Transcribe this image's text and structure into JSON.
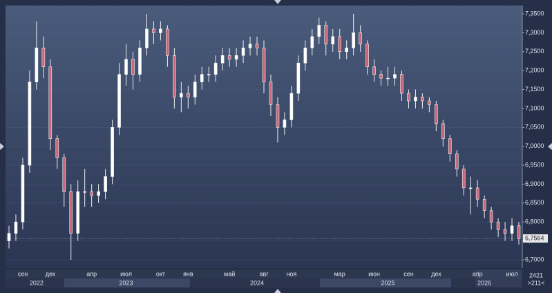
{
  "chart_data": {
    "type": "candlestick",
    "open": [
      6.75,
      6.77,
      6.8,
      6.95,
      7.17,
      7.26,
      7.21,
      7.02,
      6.97,
      6.88,
      6.77,
      6.88,
      6.88,
      6.87,
      6.88,
      6.92,
      7.05,
      7.19,
      7.23,
      7.19,
      7.26,
      7.31,
      7.3,
      7.31,
      7.24,
      7.13,
      7.14,
      7.13,
      7.17,
      7.19,
      7.19,
      7.22,
      7.24,
      7.23,
      7.24,
      7.26,
      7.27,
      7.26,
      7.17,
      7.11,
      7.05,
      7.07,
      7.14,
      7.22,
      7.26,
      7.29,
      7.32,
      7.27,
      7.29,
      7.25,
      7.26,
      7.3,
      7.27,
      7.21,
      7.19,
      7.18,
      7.18,
      7.19,
      7.14,
      7.12,
      7.13,
      7.12,
      7.11,
      7.06,
      7.02,
      6.98,
      6.94,
      6.89,
      6.89,
      6.86,
      6.83,
      6.8,
      6.78,
      6.77,
      6.79
    ],
    "high": [
      6.79,
      6.82,
      6.97,
      7.2,
      7.33,
      7.29,
      7.23,
      7.03,
      6.98,
      6.9,
      6.91,
      6.94,
      6.9,
      6.9,
      6.94,
      7.07,
      7.22,
      7.27,
      7.25,
      7.28,
      7.35,
      7.33,
      7.33,
      7.32,
      7.26,
      7.17,
      7.16,
      7.19,
      7.21,
      7.21,
      7.24,
      7.26,
      7.26,
      7.26,
      7.28,
      7.29,
      7.29,
      7.28,
      7.19,
      7.13,
      7.09,
      7.16,
      7.24,
      7.28,
      7.31,
      7.34,
      7.33,
      7.31,
      7.31,
      7.28,
      7.35,
      7.32,
      7.28,
      7.23,
      7.2,
      7.21,
      7.21,
      7.2,
      7.15,
      7.15,
      7.14,
      7.13,
      7.12,
      7.07,
      7.03,
      6.99,
      6.95,
      6.92,
      6.91,
      6.87,
      6.84,
      6.81,
      6.8,
      6.81,
      6.8
    ],
    "low": [
      6.73,
      6.75,
      6.78,
      6.93,
      7.15,
      7.18,
      6.99,
      6.94,
      6.84,
      6.7,
      6.75,
      6.84,
      6.84,
      6.85,
      6.86,
      6.9,
      7.03,
      7.16,
      7.15,
      7.17,
      7.24,
      7.27,
      7.28,
      7.21,
      7.1,
      7.09,
      7.1,
      7.11,
      7.15,
      7.17,
      7.17,
      7.2,
      7.21,
      7.21,
      7.22,
      7.24,
      7.24,
      7.14,
      7.08,
      7.01,
      7.03,
      7.05,
      7.12,
      7.2,
      7.24,
      7.27,
      7.24,
      7.25,
      7.23,
      7.23,
      7.24,
      7.25,
      7.19,
      7.17,
      7.16,
      7.16,
      7.16,
      7.12,
      7.1,
      7.1,
      7.1,
      7.09,
      7.04,
      7.0,
      6.96,
      6.92,
      6.87,
      6.82,
      6.84,
      6.81,
      6.78,
      6.76,
      6.75,
      6.75,
      6.74
    ],
    "close": [
      6.77,
      6.8,
      6.95,
      7.17,
      7.26,
      7.21,
      7.02,
      6.97,
      6.88,
      6.77,
      6.88,
      6.88,
      6.87,
      6.88,
      6.92,
      7.05,
      7.19,
      7.23,
      7.19,
      7.26,
      7.31,
      7.3,
      7.31,
      7.24,
      7.13,
      7.14,
      7.13,
      7.17,
      7.19,
      7.19,
      7.22,
      7.24,
      7.23,
      7.24,
      7.26,
      7.27,
      7.26,
      7.17,
      7.11,
      7.05,
      7.07,
      7.14,
      7.22,
      7.26,
      7.29,
      7.32,
      7.27,
      7.29,
      7.25,
      7.26,
      7.3,
      7.27,
      7.21,
      7.19,
      7.18,
      7.18,
      7.19,
      7.14,
      7.12,
      7.13,
      7.12,
      7.11,
      7.06,
      7.02,
      6.98,
      6.94,
      6.89,
      6.89,
      6.86,
      6.83,
      6.8,
      6.78,
      6.77,
      6.79,
      6.7564
    ],
    "categories": [
      null,
      null,
      "сен",
      null,
      null,
      null,
      "дек",
      null,
      null,
      null,
      null,
      null,
      "апр",
      null,
      null,
      null,
      null,
      "июл",
      null,
      null,
      null,
      null,
      "окт",
      null,
      null,
      null,
      "янв",
      null,
      null,
      null,
      null,
      null,
      "май",
      null,
      null,
      null,
      null,
      "авг",
      null,
      null,
      null,
      "ноя",
      null,
      null,
      null,
      null,
      null,
      null,
      "мар",
      null,
      null,
      null,
      null,
      "июн",
      null,
      null,
      null,
      null,
      "сен",
      null,
      null,
      null,
      "дек",
      null,
      null,
      null,
      null,
      null,
      "апр",
      null,
      null,
      null,
      null,
      "июл",
      null
    ],
    "period_labels": [
      null,
      null,
      null,
      null,
      "2022",
      null,
      null,
      null,
      null,
      null,
      null,
      null,
      null,
      null,
      null,
      null,
      null,
      "2023",
      null,
      null,
      null,
      null,
      null,
      null,
      null,
      null,
      null,
      null,
      null,
      null,
      null,
      null,
      null,
      null,
      null,
      null,
      "2024",
      null,
      null,
      null,
      null,
      null,
      null,
      null,
      null,
      null,
      null,
      null,
      null,
      null,
      null,
      null,
      null,
      null,
      null,
      "2025",
      null,
      null,
      null,
      null,
      null,
      null,
      null,
      null,
      null,
      null,
      null,
      null,
      null,
      "2026",
      null,
      null,
      null,
      null,
      null
    ],
    "up_color": "#ffffff",
    "down_color": "#c8677a",
    "ylim": [
      6.678,
      7.372
    ],
    "yticks": [
      {
        "value": 6.7,
        "label": "6,7000"
      },
      {
        "value": 6.75,
        "label": "6,7500"
      },
      {
        "value": 6.8,
        "label": "6,8000"
      },
      {
        "value": 6.85,
        "label": "6,8500"
      },
      {
        "value": 6.9,
        "label": "6,9000"
      },
      {
        "value": 6.95,
        "label": "6,9500"
      },
      {
        "value": 7.0,
        "label": "7,0000"
      },
      {
        "value": 7.05,
        "label": "7,0500"
      },
      {
        "value": 7.1,
        "label": "7,1000"
      },
      {
        "value": 7.15,
        "label": "7,1500"
      },
      {
        "value": 7.2,
        "label": "7,2000"
      },
      {
        "value": 7.25,
        "label": "7,2500"
      },
      {
        "value": 7.3,
        "label": "7,3000"
      },
      {
        "value": 7.35,
        "label": "7,3500"
      }
    ],
    "last_price": {
      "value": 6.7564,
      "label": "6,7564"
    },
    "corner_texts": [
      "2421",
      ">211<"
    ]
  }
}
